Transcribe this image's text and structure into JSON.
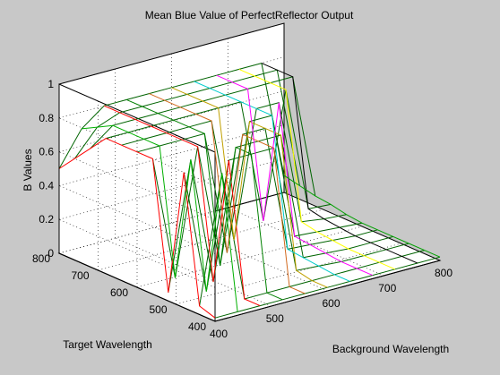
{
  "chart_data": {
    "type": "surface3d",
    "title": "Mean Blue Value of PerfectReflector Output",
    "xlabel": "Background Wavelength",
    "ylabel": "Target Wavelength",
    "zlabel": "B Values",
    "xlim": [
      400,
      800
    ],
    "ylim": [
      400,
      800
    ],
    "zlim": [
      0,
      1
    ],
    "xticks": [
      "400",
      "500",
      "600",
      "700",
      "800"
    ],
    "yticks": [
      "400",
      "500",
      "600",
      "700",
      "800"
    ],
    "zticks": [
      "0",
      "0.2",
      "0.4",
      "0.6",
      "0.8",
      "1"
    ],
    "grid": true,
    "mesh_columns": [
      {
        "x": 400,
        "color": "#ff0000"
      },
      {
        "x": 440,
        "color": "#00b000"
      },
      {
        "x": 480,
        "color": "#ff0000"
      },
      {
        "x": 520,
        "color": "#008000"
      },
      {
        "x": 560,
        "color": "#d2691e"
      },
      {
        "x": 600,
        "color": "#c0a000"
      },
      {
        "x": 640,
        "color": "#00cccc"
      },
      {
        "x": 680,
        "color": "#ff00ff"
      },
      {
        "x": 720,
        "color": "#ffff00"
      },
      {
        "x": 760,
        "color": "#000000"
      },
      {
        "x": 800,
        "color": "#00a000"
      }
    ],
    "y_values": [
      400,
      440,
      480,
      520,
      560,
      600,
      640,
      680,
      720,
      760,
      800
    ],
    "z_values": [
      [
        0.02,
        0.02,
        0.02,
        0.02,
        0.02,
        0.02,
        0.02,
        0.02,
        0.02,
        0.02,
        0.02
      ],
      [
        0.05,
        0.8,
        0.02,
        0.02,
        0.02,
        0.02,
        0.02,
        0.02,
        0.02,
        0.02,
        0.02
      ],
      [
        0.8,
        0.06,
        0.8,
        0.8,
        0.8,
        0.04,
        0.03,
        0.02,
        0.02,
        0.02,
        0.02
      ],
      [
        0.05,
        0.8,
        0.04,
        0.8,
        0.8,
        0.8,
        0.04,
        0.03,
        0.02,
        0.02,
        0.02
      ],
      [
        0.8,
        0.06,
        0.8,
        0.06,
        0.8,
        0.8,
        0.05,
        0.04,
        0.03,
        0.02,
        0.02
      ],
      [
        0.8,
        0.8,
        0.8,
        0.8,
        0.06,
        0.8,
        0.8,
        0.05,
        0.04,
        0.03,
        0.02
      ],
      [
        0.8,
        0.8,
        0.8,
        0.8,
        0.8,
        0.06,
        0.8,
        0.8,
        0.06,
        0.04,
        0.03
      ],
      [
        0.8,
        0.8,
        0.8,
        0.8,
        0.8,
        0.8,
        0.8,
        0.06,
        0.8,
        0.06,
        0.05
      ],
      [
        0.7,
        0.8,
        0.8,
        0.8,
        0.8,
        0.8,
        0.8,
        0.8,
        0.8,
        0.8,
        0.06
      ],
      [
        0.6,
        0.75,
        0.8,
        0.8,
        0.8,
        0.8,
        0.8,
        0.8,
        0.8,
        0.8,
        0.08
      ],
      [
        0.5,
        0.7,
        0.8,
        0.8,
        0.8,
        0.8,
        0.8,
        0.8,
        0.8,
        0.8,
        0.1
      ]
    ]
  }
}
